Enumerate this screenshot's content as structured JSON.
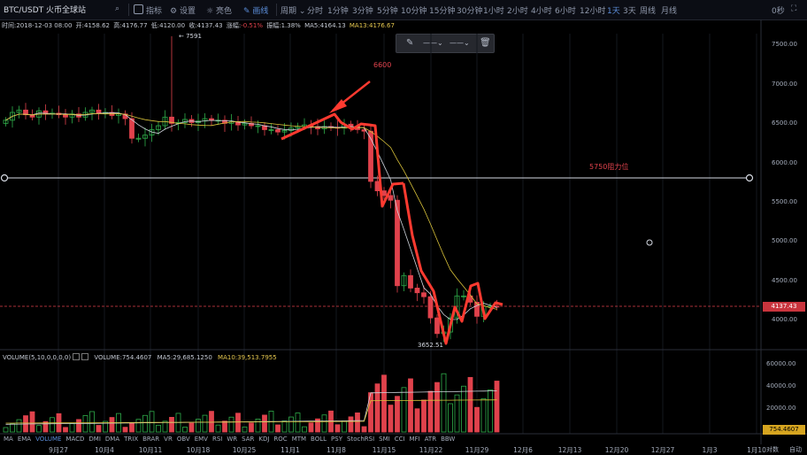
{
  "toolbar": {
    "symbol": "BTC/USDT 火币全球站",
    "indicators_label": "指标",
    "settings_label": "设置",
    "theme_label": "亮色",
    "draw_label": "画线",
    "period_label": "周期",
    "intervals": [
      "分时",
      "1分钟",
      "3分钟",
      "5分钟",
      "10分钟",
      "15分钟",
      "30分钟",
      "1小时",
      "2小时",
      "4小时",
      "6小时",
      "12小时",
      "1天",
      "3天",
      "周线",
      "月线"
    ],
    "active_interval": "1天",
    "right_value": "0秒"
  },
  "infobar": {
    "time": "时间:2018-12-03 08:00",
    "open": "开:4158.62",
    "high": "高:4176.77",
    "low": "低:4120.00",
    "close": "收:4137.43",
    "change_label": "涨幅:",
    "change_value": "-0.51%",
    "amplitude": "振幅:1.38%",
    "ma5": "MA5:4164.13",
    "ma13": "MA13:4176.67"
  },
  "main_axis": {
    "ticks": [
      "7500.00",
      "7000.00",
      "6500.00",
      "6000.00",
      "5500.00",
      "5000.00",
      "4500.00",
      "4000.00"
    ],
    "last_price": "4137.43",
    "colors": {
      "up": "#2fae4a",
      "down": "#e0424c",
      "ma_short": "#d0d4dc",
      "ma_long": "#d9c23a",
      "price_line": "#e0424c"
    }
  },
  "annotations": {
    "high_marker": "← 7591",
    "low_marker": "3652.51",
    "arrow_label": "6600",
    "resistance_label": "5750阻力位"
  },
  "volume": {
    "header": "VOLUME(5,10,0,0,0,0)",
    "value": "VOLUME:754.4607",
    "ma5": "MA5:29,685.1250",
    "ma10": "MA10:39,513.7955",
    "ticks": [
      "60000.00",
      "40000.00",
      "20000.00"
    ],
    "last_value": "754.4607"
  },
  "indicator_tabs": [
    "MA",
    "EMA",
    "VOLUME",
    "MACD",
    "DMI",
    "DMA",
    "TRIX",
    "BRAR",
    "VR",
    "OBV",
    "EMV",
    "RSI",
    "WR",
    "SAR",
    "KDJ",
    "ROC",
    "MTM",
    "BOLL",
    "PSY",
    "StochRSI",
    "SMI",
    "CCI",
    "MFI",
    "ATR",
    "BBW"
  ],
  "active_indicator": "VOLUME",
  "x_axis": {
    "labels": [
      "9月27",
      "10月4",
      "10月11",
      "10月18",
      "10月25",
      "11月1",
      "11月8",
      "11月15",
      "11月22",
      "11月29",
      "12月6",
      "12月13",
      "12月20",
      "12月27",
      "1月3",
      "1月10"
    ],
    "corner_left": "对数",
    "corner_right": "自动"
  }
}
